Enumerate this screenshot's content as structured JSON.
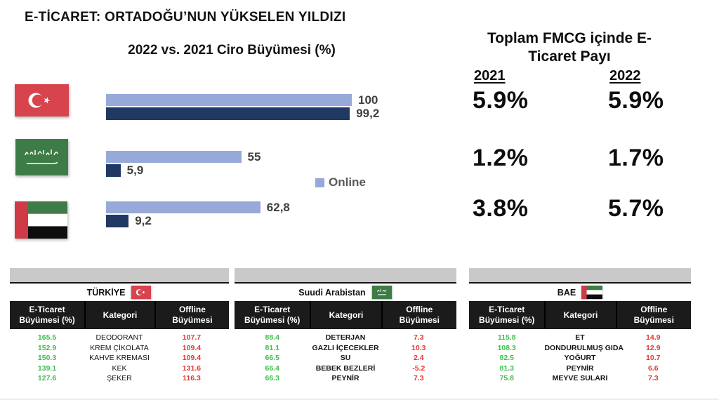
{
  "slide_title": "E-TİCARET: ORTADOĞU’NUN YÜKSELEN YILDIZI",
  "chart": {
    "title": "2022 vs. 2021 Ciro Büyümesi (%)",
    "legend": {
      "label": "Online",
      "color": "#97A9D9"
    },
    "colors": {
      "online_bar": "#97A9D9",
      "offline_bar": "#1F3864"
    },
    "rows": [
      {
        "country": "Türkiye",
        "flag": "turkey-flag",
        "online": 100,
        "online_label": "100",
        "offline": 99.2,
        "offline_label": "99,2"
      },
      {
        "country": "Suudi Arabistan",
        "flag": "saudi-arabia-flag",
        "online": 55,
        "online_label": "55",
        "offline": 5.9,
        "offline_label": "5,9"
      },
      {
        "country": "BAE",
        "flag": "uae-flag",
        "online": 62.8,
        "online_label": "62,8",
        "offline": 9.2,
        "offline_label": "9,2"
      }
    ]
  },
  "fmcg": {
    "title_line1": "Toplam FMCG içinde E-",
    "title_line2": "Ticaret Payı",
    "year_left": "2021",
    "year_right": "2022",
    "rows": [
      {
        "y2021": "5.9%",
        "y2022": "5.9%"
      },
      {
        "y2021": "1.2%",
        "y2022": "1.7%"
      },
      {
        "y2021": "3.8%",
        "y2022": "5.7%"
      }
    ]
  },
  "tables": [
    {
      "country": "TÜRKİYE",
      "flag": "turkey-flag",
      "headers": [
        "E-Ticaret Büyümesi (%)",
        "Kategori",
        "Offline Büyümesi"
      ],
      "rows": [
        [
          "165.5",
          "DEODORANT",
          "107.7"
        ],
        [
          "152.9",
          "KREM ÇİKOLATA",
          "109.4"
        ],
        [
          "150.3",
          "KAHVE KREMASI",
          "109.4"
        ],
        [
          "139.1",
          "KEK",
          "131.6"
        ],
        [
          "127.6",
          "ŞEKER",
          "116.3"
        ]
      ]
    },
    {
      "country": "Suudi Arabistan",
      "flag": "saudi-arabia-flag",
      "headers": [
        "E-Ticaret Büyümesi (%)",
        "Kategori",
        "Offline Büyümesi"
      ],
      "rows": [
        [
          "88.4",
          "DETERJAN",
          "7.3"
        ],
        [
          "81.1",
          "GAZLI İÇECEKLER",
          "10.3"
        ],
        [
          "66.5",
          "SU",
          "2.4"
        ],
        [
          "66.4",
          "BEBEK BEZLERİ",
          "-5.2"
        ],
        [
          "66.3",
          "PEYNİR",
          "7.3"
        ]
      ]
    },
    {
      "country": "BAE",
      "flag": "uae-flag",
      "headers": [
        "E-Ticaret Büyümesi (%)",
        "Kategori",
        "Offline Büyümesi"
      ],
      "rows": [
        [
          "115.8",
          "ET",
          "14.9"
        ],
        [
          "108.3",
          "DONDURULMUŞ GIDA",
          "12.9"
        ],
        [
          "82.5",
          "YOĞURT",
          "10.7"
        ],
        [
          "81.3",
          "PEYNİR",
          "6.6"
        ],
        [
          "75.8",
          "MEYVE SULARI",
          "7.3"
        ]
      ]
    }
  ],
  "colors": {
    "positive_green": "#3FBF4E",
    "negative_red": "#E8362E",
    "table_header_bg": "#1B1B1B",
    "table_topbar_gray": "#C9C9C9",
    "turkey_flag_red": "#D8444D",
    "saudi_flag_green": "#3E7C47",
    "uae_flag_red": "#CE3A45"
  },
  "chart_data": [
    {
      "type": "bar",
      "orientation": "horizontal",
      "title": "2022 vs. 2021 Ciro Büyümesi (%)",
      "categories": [
        "Türkiye",
        "Suudi Arabistan",
        "BAE"
      ],
      "series": [
        {
          "name": "Online",
          "color": "#97A9D9",
          "values": [
            100,
            55,
            62.8
          ]
        },
        {
          "name": "",
          "color": "#1F3864",
          "values": [
            99.2,
            5.9,
            9.2
          ]
        }
      ],
      "value_labels": [
        [
          "100",
          "99,2"
        ],
        [
          "55",
          "5,9"
        ],
        [
          "62,8",
          "9,2"
        ]
      ],
      "xlim": [
        0,
        100
      ],
      "grid": false,
      "legend_position": "middle-right"
    },
    {
      "type": "table",
      "title": "Toplam FMCG içinde E-Ticaret Payı",
      "columns": [
        "2021",
        "2022"
      ],
      "row_labels": [
        "Türkiye",
        "Suudi Arabistan",
        "BAE"
      ],
      "rows": [
        [
          "5.9%",
          "5.9%"
        ],
        [
          "1.2%",
          "1.7%"
        ],
        [
          "3.8%",
          "5.7%"
        ]
      ]
    },
    {
      "type": "table",
      "title": "TÜRKİYE",
      "columns": [
        "E-Ticaret Büyümesi (%)",
        "Kategori",
        "Offline Büyümesi"
      ],
      "rows": [
        [
          165.5,
          "DEODORANT",
          107.7
        ],
        [
          152.9,
          "KREM ÇİKOLATA",
          109.4
        ],
        [
          150.3,
          "KAHVE KREMASI",
          109.4
        ],
        [
          139.1,
          "KEK",
          131.6
        ],
        [
          127.6,
          "ŞEKER",
          116.3
        ]
      ]
    },
    {
      "type": "table",
      "title": "Suudi Arabistan",
      "columns": [
        "E-Ticaret Büyümesi (%)",
        "Kategori",
        "Offline Büyümesi"
      ],
      "rows": [
        [
          88.4,
          "DETERJAN",
          7.3
        ],
        [
          81.1,
          "GAZLI İÇECEKLER",
          10.3
        ],
        [
          66.5,
          "SU",
          2.4
        ],
        [
          66.4,
          "BEBEK BEZLERİ",
          -5.2
        ],
        [
          66.3,
          "PEYNİR",
          7.3
        ]
      ]
    },
    {
      "type": "table",
      "title": "BAE",
      "columns": [
        "E-Ticaret Büyümesi (%)",
        "Kategori",
        "Offline Büyümesi"
      ],
      "rows": [
        [
          115.8,
          "ET",
          14.9
        ],
        [
          108.3,
          "DONDURULMUŞ GIDA",
          12.9
        ],
        [
          82.5,
          "YOĞURT",
          10.7
        ],
        [
          81.3,
          "PEYNİR",
          6.6
        ],
        [
          75.8,
          "MEYVE SULARI",
          7.3
        ]
      ]
    }
  ]
}
